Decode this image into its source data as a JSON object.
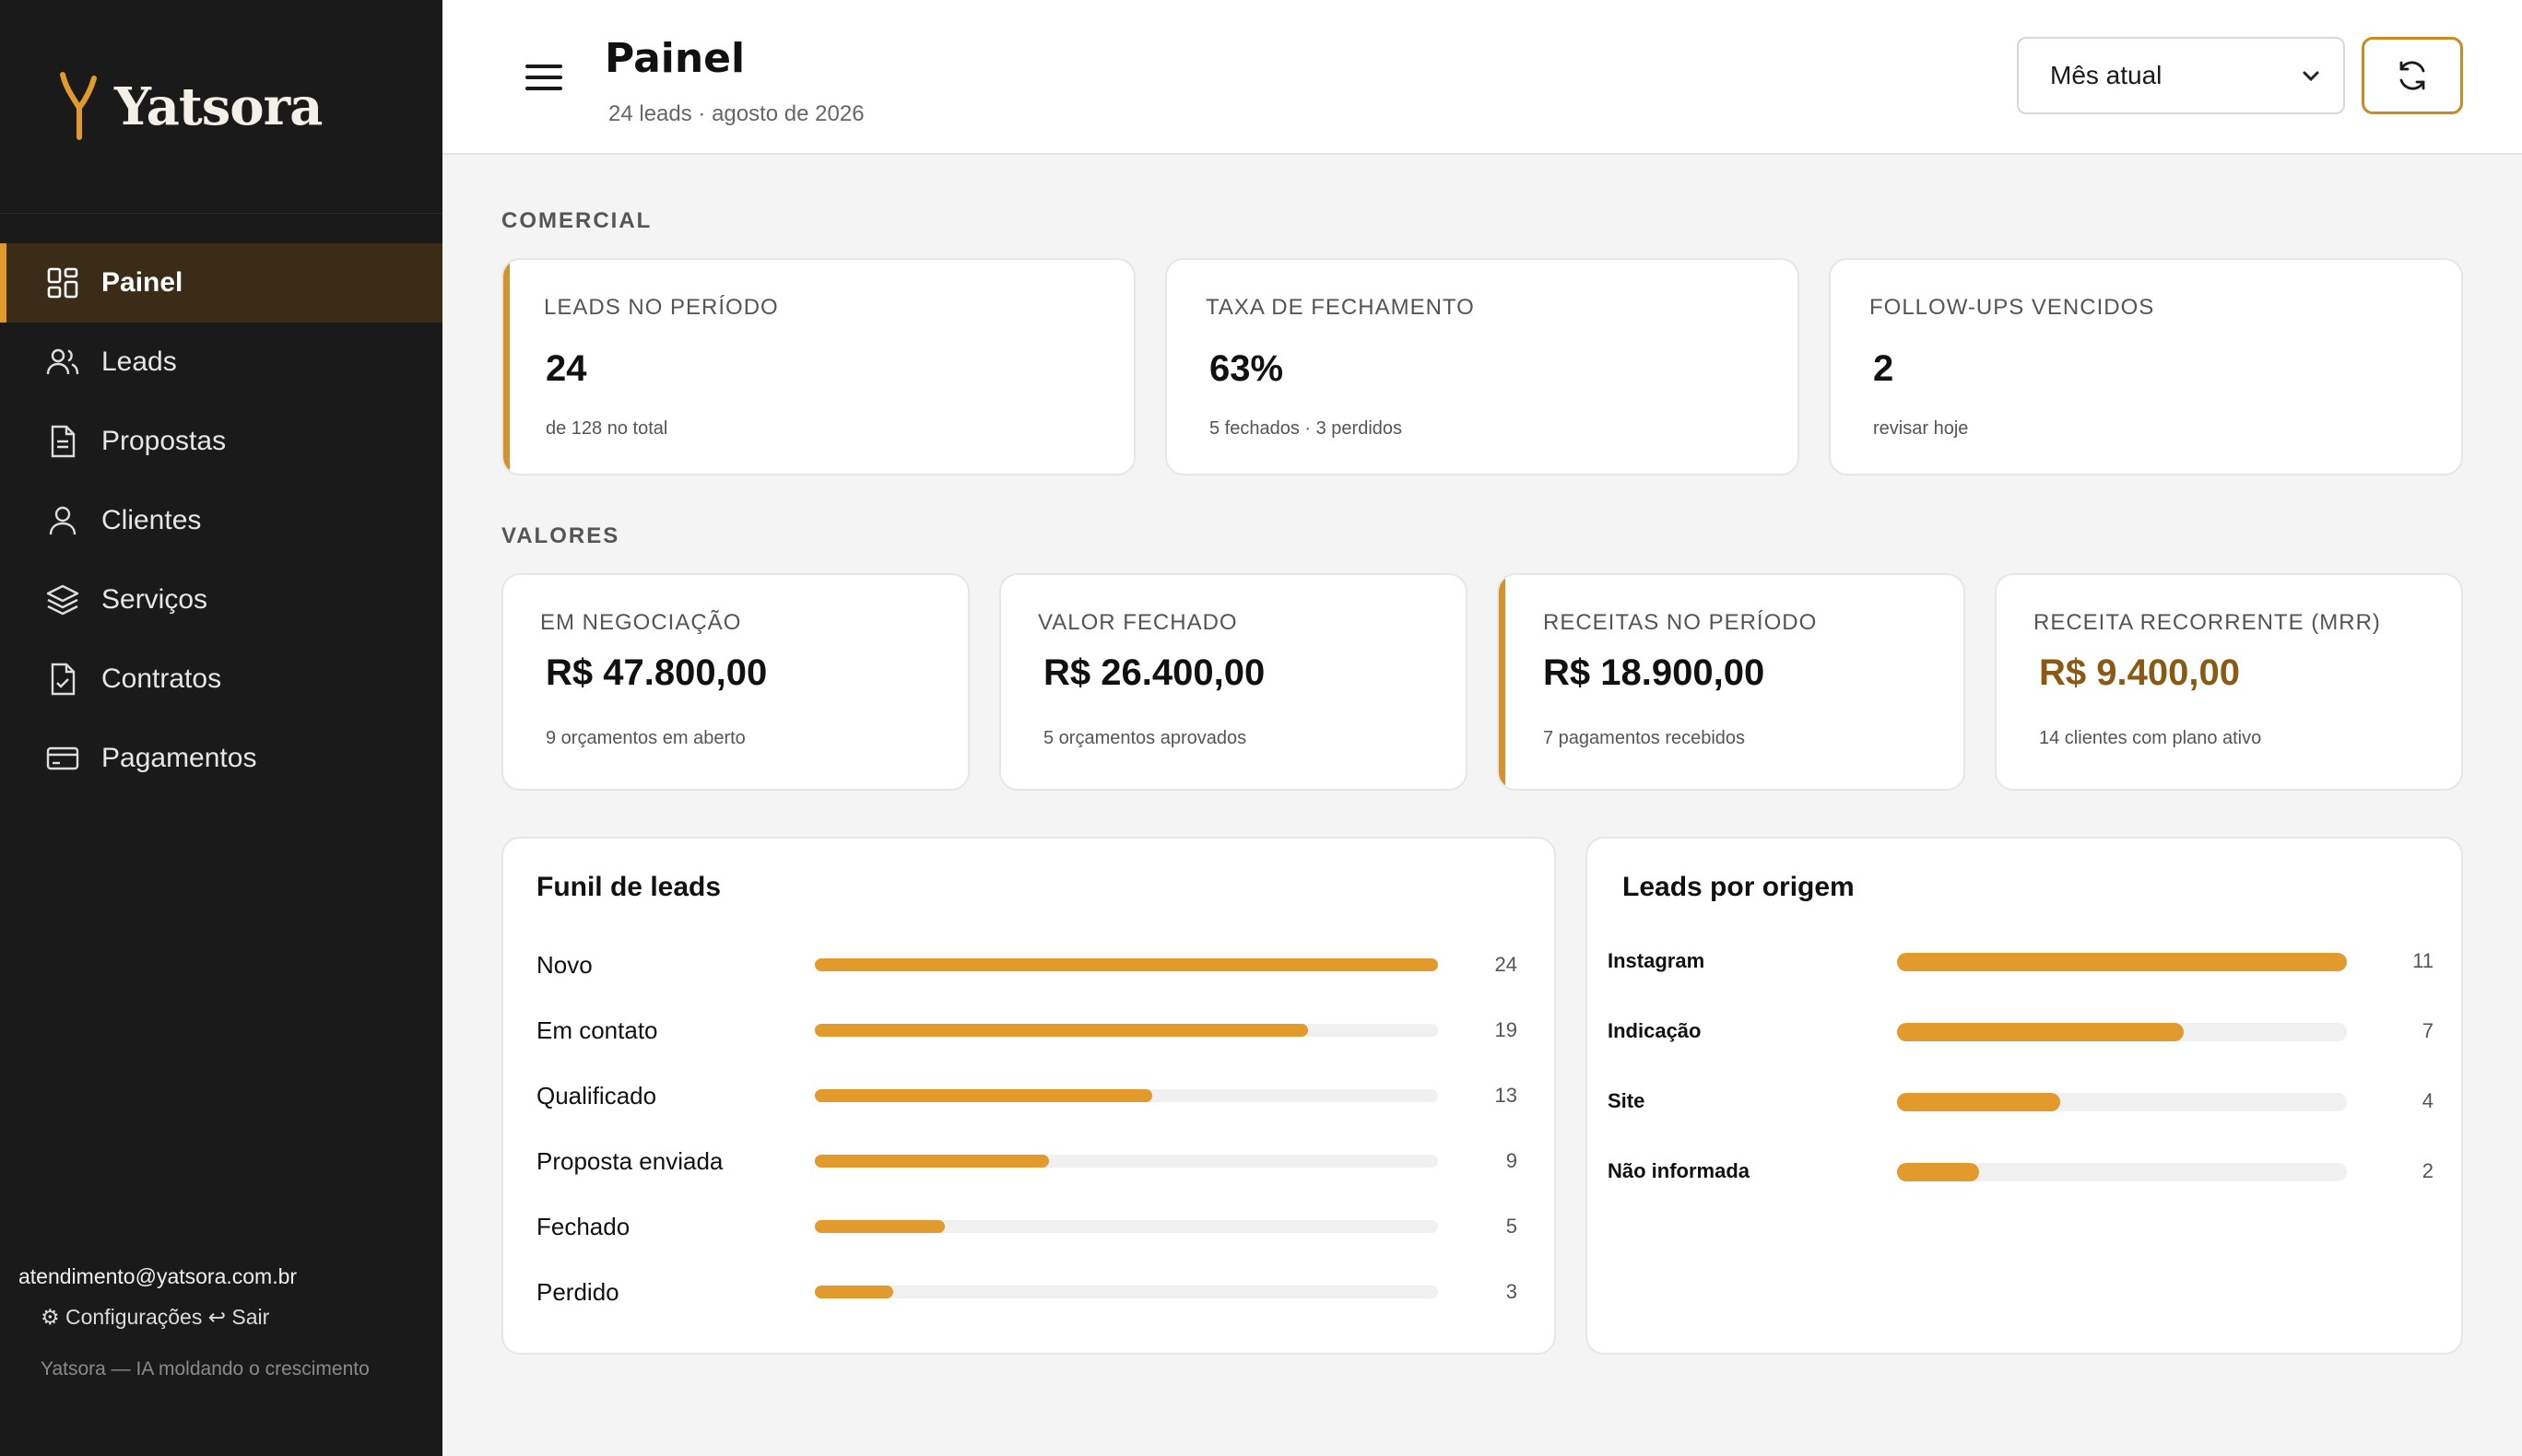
{
  "brand": {
    "name": "Yatsora"
  },
  "sidebar": {
    "items": [
      {
        "label": "Painel",
        "icon": "dashboard-icon",
        "active": true
      },
      {
        "label": "Leads",
        "icon": "users-icon"
      },
      {
        "label": "Propostas",
        "icon": "document-icon"
      },
      {
        "label": "Clientes",
        "icon": "user-icon"
      },
      {
        "label": "Serviços",
        "icon": "layers-icon"
      },
      {
        "label": "Contratos",
        "icon": "contract-icon"
      },
      {
        "label": "Pagamentos",
        "icon": "credit-card-icon"
      }
    ],
    "email": "atendimento@yatsora.com.br",
    "settings_label": "⚙ Configurações",
    "logout_label": "↩ Sair",
    "tagline": "Yatsora — IA moldando o crescimento"
  },
  "header": {
    "title": "Painel",
    "subtitle": "24 leads · agosto de 2026",
    "period_selected": "Mês atual"
  },
  "commercial": {
    "section_label": "COMERCIAL",
    "cards": [
      {
        "label": "LEADS NO PERÍODO",
        "value": "24",
        "note": "de 128 no total"
      },
      {
        "label": "TAXA DE FECHAMENTO",
        "value": "63%",
        "note": "5 fechados · 3 perdidos"
      },
      {
        "label": "FOLLOW-UPS VENCIDOS",
        "value": "2",
        "note": "revisar hoje"
      }
    ]
  },
  "values": {
    "section_label": "VALORES",
    "cards": [
      {
        "label": "EM NEGOCIAÇÃO",
        "value": "R$ 47.800,00",
        "note": "9 orçamentos em aberto"
      },
      {
        "label": "VALOR FECHADO",
        "value": "R$ 26.400,00",
        "note": "5 orçamentos aprovados"
      },
      {
        "label": "RECEITAS NO PERÍODO",
        "value": "R$ 18.900,00",
        "note": "7 pagamentos recebidos"
      },
      {
        "label": "RECEITA RECORRENTE (MRR)",
        "value": "R$ 9.400,00",
        "note": "14 clientes com plano ativo"
      }
    ]
  },
  "funnel": {
    "title": "Funil de leads",
    "max": 24,
    "rows": [
      {
        "label": "Novo",
        "count": 24
      },
      {
        "label": "Em contato",
        "count": 19
      },
      {
        "label": "Qualificado",
        "count": 13
      },
      {
        "label": "Proposta enviada",
        "count": 9
      },
      {
        "label": "Fechado",
        "count": 5
      },
      {
        "label": "Perdido",
        "count": 3
      }
    ]
  },
  "origin": {
    "title": "Leads por origem",
    "max": 11,
    "rows": [
      {
        "label": "Instagram",
        "count": 11
      },
      {
        "label": "Indicação",
        "count": 7
      },
      {
        "label": "Site",
        "count": 4
      },
      {
        "label": "Não informada",
        "count": 2
      }
    ]
  },
  "colors": {
    "accent": "#e29a2c",
    "sidebar_bg": "#1a1a1a",
    "active_bg": "#3a2c16",
    "mrr_value": "#8a5a14"
  }
}
